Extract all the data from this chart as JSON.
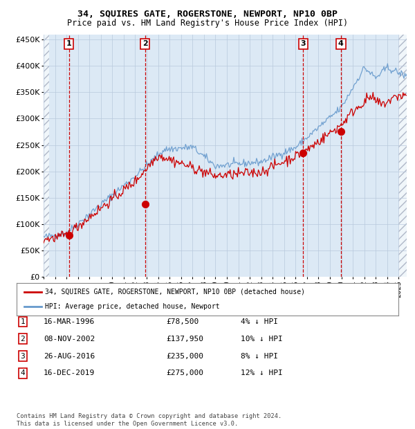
{
  "title1": "34, SQUIRES GATE, ROGERSTONE, NEWPORT, NP10 0BP",
  "title2": "Price paid vs. HM Land Registry's House Price Index (HPI)",
  "ylim": [
    0,
    460000
  ],
  "yticks": [
    0,
    50000,
    100000,
    150000,
    200000,
    250000,
    300000,
    350000,
    400000,
    450000
  ],
  "ytick_labels": [
    "£0",
    "£50K",
    "£100K",
    "£150K",
    "£200K",
    "£250K",
    "£300K",
    "£350K",
    "£400K",
    "£450K"
  ],
  "xlim_start": 1994.0,
  "xlim_end": 2025.7,
  "bg_color": "#dce9f5",
  "hatch_color": "#b0b8c8",
  "grid_color": "#b8c8dc",
  "sale_dates": [
    1996.21,
    2002.86,
    2016.65,
    2019.96
  ],
  "sale_prices": [
    78500,
    137950,
    235000,
    275000
  ],
  "sale_labels": [
    "1",
    "2",
    "3",
    "4"
  ],
  "legend_label_red": "34, SQUIRES GATE, ROGERSTONE, NEWPORT, NP10 0BP (detached house)",
  "legend_label_blue": "HPI: Average price, detached house, Newport",
  "table_data": [
    [
      "1",
      "16-MAR-1996",
      "£78,500",
      "4% ↓ HPI"
    ],
    [
      "2",
      "08-NOV-2002",
      "£137,950",
      "10% ↓ HPI"
    ],
    [
      "3",
      "26-AUG-2016",
      "£235,000",
      "8% ↓ HPI"
    ],
    [
      "4",
      "16-DEC-2019",
      "£275,000",
      "12% ↓ HPI"
    ]
  ],
  "footer": "Contains HM Land Registry data © Crown copyright and database right 2024.\nThis data is licensed under the Open Government Licence v3.0.",
  "red_color": "#cc0000",
  "blue_color": "#6699cc"
}
